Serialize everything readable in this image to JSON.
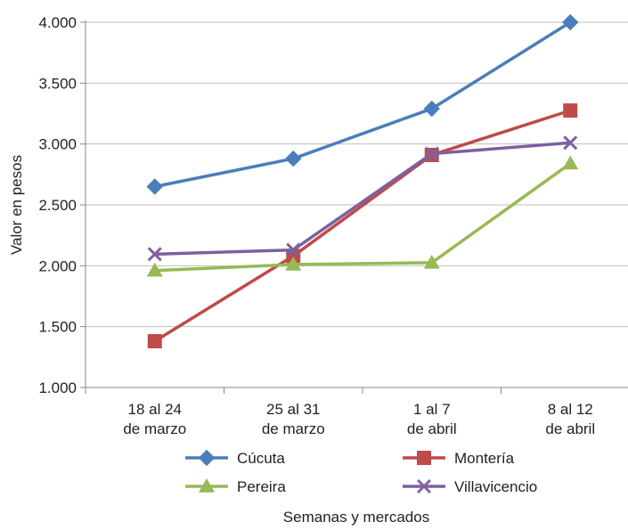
{
  "chart_data": {
    "type": "line",
    "title": "",
    "ylabel": "Valor en pesos",
    "xlabel": "Semanas y mercados",
    "ylim": [
      1000,
      4000
    ],
    "ytick_values": [
      1000,
      1500,
      2000,
      2500,
      3000,
      3500,
      4000
    ],
    "ytick_labels": [
      "1.000",
      "1.500",
      "2.000",
      "2.500",
      "3.000",
      "3.500",
      "4.000"
    ],
    "categories": [
      [
        "18 al 24",
        "de marzo"
      ],
      [
        "25 al 31",
        "de marzo"
      ],
      [
        "1 al 7",
        "de abril"
      ],
      [
        "8 al 12",
        "de abril"
      ]
    ],
    "grid": "horizontal",
    "legend_position": "bottom",
    "series": [
      {
        "name": "Cúcuta",
        "color": "#4a7ebb",
        "marker": "diamond",
        "values": [
          2650,
          2880,
          3290,
          4000
        ]
      },
      {
        "name": "Montería",
        "color": "#be4b48",
        "marker": "square",
        "values": [
          1380,
          2080,
          2910,
          3275
        ]
      },
      {
        "name": "Pereira",
        "color": "#98b954",
        "marker": "triangle",
        "values": [
          1960,
          2010,
          2025,
          2840
        ]
      },
      {
        "name": "Villavicencio",
        "color": "#7d60a0",
        "marker": "x",
        "values": [
          2095,
          2130,
          2920,
          3010
        ]
      }
    ]
  }
}
